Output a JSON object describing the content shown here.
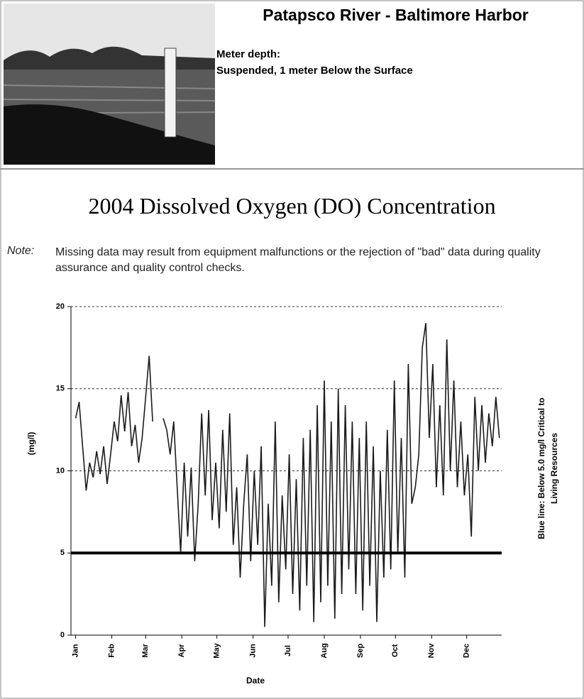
{
  "header": {
    "title": "Patapsco River - Baltimore Harbor",
    "meter_depth_label": "Meter depth:",
    "meter_depth_value": "Suspended, 1 meter Below the Surface"
  },
  "note": {
    "label": "Note:",
    "text": "Missing data may result from equipment malfunctions or the rejection of \"bad\" data during quality assurance and quality control checks."
  },
  "chart_data": {
    "type": "line",
    "title": "2004 Dissolved Oxygen (DO) Concentration",
    "x_label": "Date",
    "y_label": "(mg/l)",
    "annotation": [
      "Blue line: Below 5.0 mg/l Critical to",
      "Living Resources"
    ],
    "threshold": 5,
    "xlim": [
      -3,
      366
    ],
    "xticks": [
      {
        "value": 1,
        "label": "Jan"
      },
      {
        "value": 32,
        "label": "Feb"
      },
      {
        "value": 61,
        "label": "Mar"
      },
      {
        "value": 92,
        "label": "Apr"
      },
      {
        "value": 122,
        "label": "May"
      },
      {
        "value": 153,
        "label": "Jun"
      },
      {
        "value": 183,
        "label": "Jul"
      },
      {
        "value": 214,
        "label": "Aug"
      },
      {
        "value": 245,
        "label": "Sep"
      },
      {
        "value": 275,
        "label": "Oct"
      },
      {
        "value": 306,
        "label": "Nov"
      },
      {
        "value": 336,
        "label": "Dec"
      }
    ],
    "ylim": [
      0,
      20
    ],
    "yticks": [
      0,
      5,
      10,
      15,
      20
    ],
    "grid": true,
    "color": "#1a1a1a",
    "x": [
      1,
      4,
      7,
      10,
      13,
      16,
      19,
      22,
      25,
      28,
      31,
      34,
      37,
      40,
      43,
      46,
      49,
      52,
      55,
      58,
      61,
      64,
      67,
      70,
      76,
      79,
      82,
      85,
      88,
      91,
      94,
      97,
      100,
      103,
      106,
      109,
      112,
      115,
      118,
      121,
      124,
      127,
      130,
      133,
      136,
      139,
      142,
      145,
      148,
      151,
      154,
      157,
      160,
      163,
      166,
      169,
      172,
      175,
      178,
      181,
      184,
      187,
      190,
      193,
      196,
      199,
      202,
      205,
      208,
      211,
      214,
      217,
      220,
      223,
      226,
      229,
      232,
      235,
      238,
      241,
      244,
      247,
      250,
      253,
      256,
      259,
      262,
      265,
      268,
      271,
      274,
      277,
      280,
      283,
      286,
      289,
      292,
      295,
      298,
      301,
      304,
      307,
      310,
      313,
      316,
      319,
      322,
      325,
      328,
      331,
      334,
      337,
      340,
      343,
      346,
      349,
      352,
      355,
      358,
      361,
      364
    ],
    "values": [
      13.2,
      14.2,
      11.5,
      8.8,
      10.5,
      9.6,
      11.2,
      9.8,
      11.5,
      9.2,
      11,
      13,
      11.8,
      14.6,
      12.4,
      14.8,
      11.5,
      12.8,
      10.5,
      12,
      14.5,
      17,
      13,
      null,
      13.2,
      12.5,
      11,
      13,
      9,
      5,
      10.5,
      6,
      10.2,
      4.5,
      8,
      13.5,
      8.5,
      13.7,
      7,
      10.5,
      6.5,
      12.5,
      7.5,
      13.5,
      5.5,
      9,
      3.5,
      8,
      11,
      4.5,
      10,
      5.5,
      11.5,
      0.5,
      8,
      3,
      13,
      2,
      8.5,
      4,
      11,
      2.5,
      9.5,
      1.5,
      12,
      3,
      12.5,
      0.8,
      14,
      2,
      15.5,
      3,
      13,
      1,
      15,
      2.5,
      14,
      4,
      13,
      2.5,
      12,
      1.5,
      13,
      3,
      11.5,
      0.8,
      10,
      3.5,
      12.5,
      4,
      15.5,
      5,
      12,
      3.5,
      16.5,
      8,
      9,
      11,
      17.5,
      19,
      12,
      16.5,
      9,
      14,
      8.5,
      18,
      10,
      15.5,
      9,
      13,
      8.5,
      11,
      6,
      14.5,
      10,
      14,
      10.5,
      13.5,
      11.5,
      14.5,
      12
    ]
  }
}
